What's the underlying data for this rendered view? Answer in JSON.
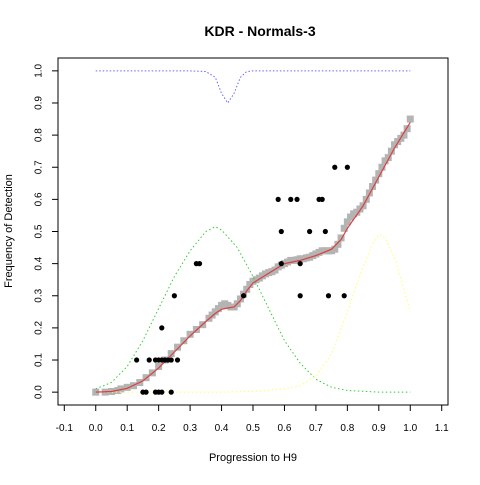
{
  "chart_data": {
    "type": "scatter",
    "title": "KDR - Normals-3",
    "xlabel": "Progression to H9",
    "ylabel": "Frequency of Detection",
    "xlim": [
      -0.12,
      1.12
    ],
    "ylim": [
      -0.04,
      1.04
    ],
    "x_ticks": [
      "-0.1",
      "0.0",
      "0.1",
      "0.2",
      "0.3",
      "0.4",
      "0.5",
      "0.6",
      "0.7",
      "0.8",
      "0.9",
      "1.0",
      "1.1"
    ],
    "y_ticks": [
      "0.0",
      "0.1",
      "0.2",
      "0.3",
      "0.4",
      "0.5",
      "0.6",
      "0.7",
      "0.8",
      "0.9",
      "1.0"
    ],
    "grid": false,
    "colors": {
      "gray_points": "#b4b4b4",
      "black_points": "#000000",
      "fit_line": "#d94040",
      "green_curve": "#33cc33",
      "yellow_curve": "#ffff66",
      "blue_curve": "#6666ff"
    },
    "series": [
      {
        "kind": "black-points",
        "points": [
          [
            0.13,
            0.1
          ],
          [
            0.17,
            0.1
          ],
          [
            0.19,
            0.1
          ],
          [
            0.2,
            0.1
          ],
          [
            0.21,
            0.1
          ],
          [
            0.22,
            0.1
          ],
          [
            0.23,
            0.1
          ],
          [
            0.24,
            0.1
          ],
          [
            0.26,
            0.1
          ],
          [
            0.21,
            0.2
          ],
          [
            0.25,
            0.3
          ],
          [
            0.32,
            0.4
          ],
          [
            0.33,
            0.4
          ],
          [
            0.15,
            0.0
          ],
          [
            0.16,
            0.0
          ],
          [
            0.19,
            0.0
          ],
          [
            0.2,
            0.0
          ],
          [
            0.21,
            0.0
          ],
          [
            0.24,
            0.0
          ],
          [
            0.47,
            0.3
          ],
          [
            0.58,
            0.6
          ],
          [
            0.59,
            0.5
          ],
          [
            0.59,
            0.4
          ],
          [
            0.62,
            0.6
          ],
          [
            0.64,
            0.6
          ],
          [
            0.65,
            0.3
          ],
          [
            0.65,
            0.4
          ],
          [
            0.68,
            0.5
          ],
          [
            0.71,
            0.6
          ],
          [
            0.72,
            0.6
          ],
          [
            0.73,
            0.5
          ],
          [
            0.74,
            0.3
          ],
          [
            0.76,
            0.7
          ],
          [
            0.79,
            0.3
          ],
          [
            0.8,
            0.7
          ]
        ]
      },
      {
        "kind": "gray-points",
        "points": [
          [
            0.0,
            0.0
          ],
          [
            0.03,
            0.0
          ],
          [
            0.05,
            0.002
          ],
          [
            0.07,
            0.005
          ],
          [
            0.08,
            0.01
          ],
          [
            0.1,
            0.015
          ],
          [
            0.12,
            0.02
          ],
          [
            0.14,
            0.03
          ],
          [
            0.16,
            0.045
          ],
          [
            0.18,
            0.06
          ],
          [
            0.2,
            0.08
          ],
          [
            0.22,
            0.1
          ],
          [
            0.24,
            0.12
          ],
          [
            0.26,
            0.14
          ],
          [
            0.28,
            0.16
          ],
          [
            0.3,
            0.18
          ],
          [
            0.32,
            0.195
          ],
          [
            0.34,
            0.21
          ],
          [
            0.36,
            0.23
          ],
          [
            0.37,
            0.24
          ],
          [
            0.38,
            0.25
          ],
          [
            0.39,
            0.26
          ],
          [
            0.4,
            0.27
          ],
          [
            0.41,
            0.275
          ],
          [
            0.42,
            0.27
          ],
          [
            0.43,
            0.265
          ],
          [
            0.44,
            0.265
          ],
          [
            0.45,
            0.275
          ],
          [
            0.46,
            0.29
          ],
          [
            0.47,
            0.305
          ],
          [
            0.48,
            0.32
          ],
          [
            0.49,
            0.335
          ],
          [
            0.5,
            0.345
          ],
          [
            0.51,
            0.35
          ],
          [
            0.52,
            0.355
          ],
          [
            0.53,
            0.362
          ],
          [
            0.54,
            0.368
          ],
          [
            0.55,
            0.372
          ],
          [
            0.56,
            0.375
          ],
          [
            0.57,
            0.38
          ],
          [
            0.58,
            0.39
          ],
          [
            0.59,
            0.395
          ],
          [
            0.6,
            0.4
          ],
          [
            0.61,
            0.405
          ],
          [
            0.62,
            0.41
          ],
          [
            0.63,
            0.41
          ],
          [
            0.64,
            0.412
          ],
          [
            0.65,
            0.415
          ],
          [
            0.66,
            0.415
          ],
          [
            0.67,
            0.418
          ],
          [
            0.68,
            0.42
          ],
          [
            0.69,
            0.425
          ],
          [
            0.7,
            0.43
          ],
          [
            0.71,
            0.435
          ],
          [
            0.72,
            0.44
          ],
          [
            0.73,
            0.44
          ],
          [
            0.74,
            0.44
          ],
          [
            0.75,
            0.44
          ],
          [
            0.76,
            0.445
          ],
          [
            0.77,
            0.46
          ],
          [
            0.78,
            0.48
          ],
          [
            0.79,
            0.51
          ],
          [
            0.8,
            0.53
          ],
          [
            0.81,
            0.545
          ],
          [
            0.82,
            0.555
          ],
          [
            0.83,
            0.56
          ],
          [
            0.84,
            0.57
          ],
          [
            0.85,
            0.58
          ],
          [
            0.86,
            0.6
          ],
          [
            0.87,
            0.62
          ],
          [
            0.88,
            0.64
          ],
          [
            0.89,
            0.66
          ],
          [
            0.9,
            0.68
          ],
          [
            0.91,
            0.7
          ],
          [
            0.92,
            0.72
          ],
          [
            0.93,
            0.73
          ],
          [
            0.94,
            0.75
          ],
          [
            0.95,
            0.77
          ],
          [
            0.96,
            0.78
          ],
          [
            0.97,
            0.79
          ],
          [
            0.98,
            0.8
          ],
          [
            0.99,
            0.82
          ],
          [
            1.0,
            0.85
          ]
        ]
      },
      {
        "kind": "fit-line",
        "points": [
          [
            0.0,
            0.0
          ],
          [
            0.05,
            0.002
          ],
          [
            0.1,
            0.012
          ],
          [
            0.15,
            0.035
          ],
          [
            0.2,
            0.075
          ],
          [
            0.25,
            0.125
          ],
          [
            0.3,
            0.175
          ],
          [
            0.35,
            0.22
          ],
          [
            0.38,
            0.245
          ],
          [
            0.4,
            0.258
          ],
          [
            0.42,
            0.262
          ],
          [
            0.44,
            0.265
          ],
          [
            0.46,
            0.285
          ],
          [
            0.48,
            0.315
          ],
          [
            0.5,
            0.34
          ],
          [
            0.55,
            0.37
          ],
          [
            0.6,
            0.4
          ],
          [
            0.65,
            0.41
          ],
          [
            0.7,
            0.425
          ],
          [
            0.75,
            0.445
          ],
          [
            0.78,
            0.475
          ],
          [
            0.8,
            0.51
          ],
          [
            0.85,
            0.58
          ],
          [
            0.9,
            0.67
          ],
          [
            0.95,
            0.76
          ],
          [
            1.0,
            0.84
          ]
        ]
      },
      {
        "kind": "green-curve",
        "points": [
          [
            0.0,
            0.01
          ],
          [
            0.05,
            0.03
          ],
          [
            0.1,
            0.08
          ],
          [
            0.15,
            0.16
          ],
          [
            0.2,
            0.26
          ],
          [
            0.25,
            0.36
          ],
          [
            0.3,
            0.44
          ],
          [
            0.35,
            0.5
          ],
          [
            0.38,
            0.515
          ],
          [
            0.4,
            0.505
          ],
          [
            0.45,
            0.45
          ],
          [
            0.5,
            0.36
          ],
          [
            0.55,
            0.26
          ],
          [
            0.6,
            0.16
          ],
          [
            0.65,
            0.09
          ],
          [
            0.7,
            0.04
          ],
          [
            0.75,
            0.015
          ],
          [
            0.8,
            0.005
          ],
          [
            0.9,
            0.0
          ],
          [
            1.0,
            0.0
          ]
        ]
      },
      {
        "kind": "yellow-curve",
        "points": [
          [
            0.0,
            0.0
          ],
          [
            0.2,
            0.0
          ],
          [
            0.4,
            0.0
          ],
          [
            0.5,
            0.002
          ],
          [
            0.6,
            0.01
          ],
          [
            0.65,
            0.02
          ],
          [
            0.7,
            0.05
          ],
          [
            0.75,
            0.12
          ],
          [
            0.8,
            0.25
          ],
          [
            0.85,
            0.39
          ],
          [
            0.88,
            0.46
          ],
          [
            0.9,
            0.49
          ],
          [
            0.92,
            0.48
          ],
          [
            0.95,
            0.42
          ],
          [
            0.98,
            0.32
          ],
          [
            1.0,
            0.25
          ]
        ]
      },
      {
        "kind": "blue-curve",
        "points": [
          [
            0.0,
            1.0
          ],
          [
            0.3,
            1.0
          ],
          [
            0.35,
            0.998
          ],
          [
            0.38,
            0.98
          ],
          [
            0.4,
            0.93
          ],
          [
            0.42,
            0.9
          ],
          [
            0.44,
            0.93
          ],
          [
            0.46,
            0.98
          ],
          [
            0.48,
            0.998
          ],
          [
            0.5,
            1.0
          ],
          [
            0.7,
            1.0
          ],
          [
            1.0,
            1.0
          ]
        ]
      }
    ]
  }
}
